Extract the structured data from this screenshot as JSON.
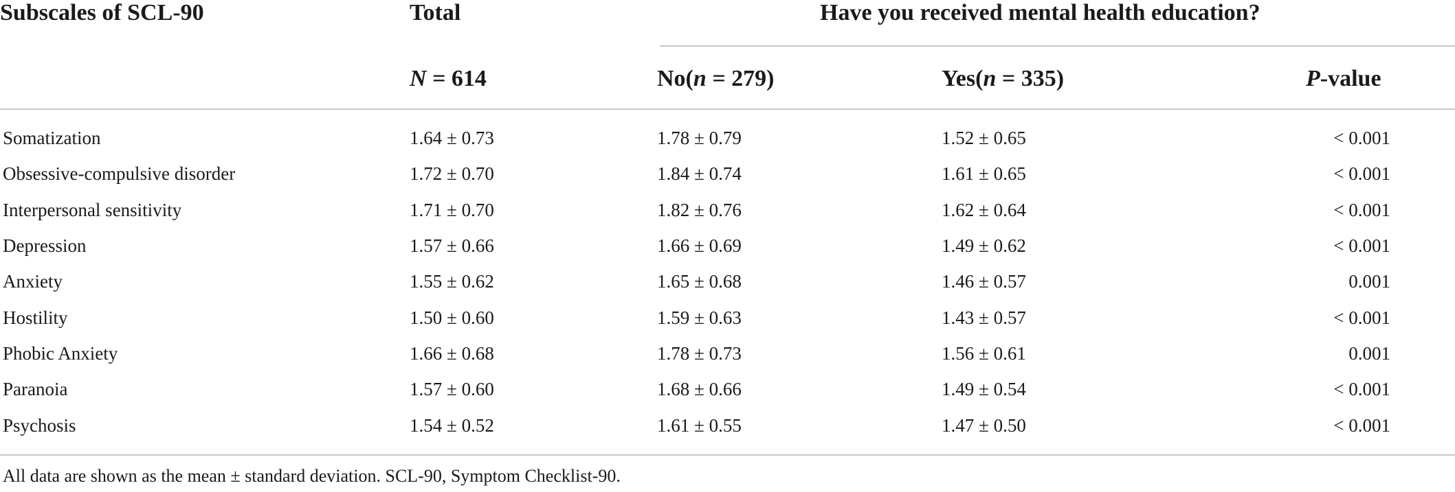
{
  "header": {
    "subscales": "Subscales of SCL-90",
    "total": "Total",
    "group": "Have you received mental health education?",
    "total_n_italic": "N",
    "total_n_rest": " = 614",
    "no_label": "No(",
    "no_n_italic": "n",
    "no_n_rest": " = 279)",
    "yes_label": "Yes(",
    "yes_n_italic": "n",
    "yes_n_rest": " = 335)",
    "p_italic": "P",
    "p_rest": "-value"
  },
  "rows": [
    {
      "name": "Somatization",
      "total": "1.64 ± 0.73",
      "no": "1.78 ± 0.79",
      "yes": "1.52 ± 0.65",
      "p": "< 0.001"
    },
    {
      "name": "Obsessive-compulsive disorder",
      "total": "1.72 ± 0.70",
      "no": "1.84 ± 0.74",
      "yes": "1.61 ± 0.65",
      "p": "< 0.001"
    },
    {
      "name": "Interpersonal sensitivity",
      "total": "1.71 ± 0.70",
      "no": "1.82 ± 0.76",
      "yes": "1.62 ± 0.64",
      "p": "< 0.001"
    },
    {
      "name": "Depression",
      "total": "1.57 ± 0.66",
      "no": "1.66 ± 0.69",
      "yes": "1.49 ± 0.62",
      "p": "< 0.001"
    },
    {
      "name": "Anxiety",
      "total": "1.55 ± 0.62",
      "no": "1.65 ± 0.68",
      "yes": "1.46 ± 0.57",
      "p": "0.001"
    },
    {
      "name": "Hostility",
      "total": "1.50 ± 0.60",
      "no": "1.59 ± 0.63",
      "yes": "1.43 ± 0.57",
      "p": "< 0.001"
    },
    {
      "name": "Phobic Anxiety",
      "total": "1.66 ± 0.68",
      "no": "1.78 ± 0.73",
      "yes": "1.56 ± 0.61",
      "p": "0.001"
    },
    {
      "name": "Paranoia",
      "total": "1.57 ± 0.60",
      "no": "1.68 ± 0.66",
      "yes": "1.49 ± 0.54",
      "p": "< 0.001"
    },
    {
      "name": "Psychosis",
      "total": "1.54 ± 0.52",
      "no": "1.61 ± 0.55",
      "yes": "1.47 ± 0.50",
      "p": "< 0.001"
    }
  ],
  "footnote": "All data are shown as the mean ± standard deviation. SCL-90, Symptom Checklist-90."
}
